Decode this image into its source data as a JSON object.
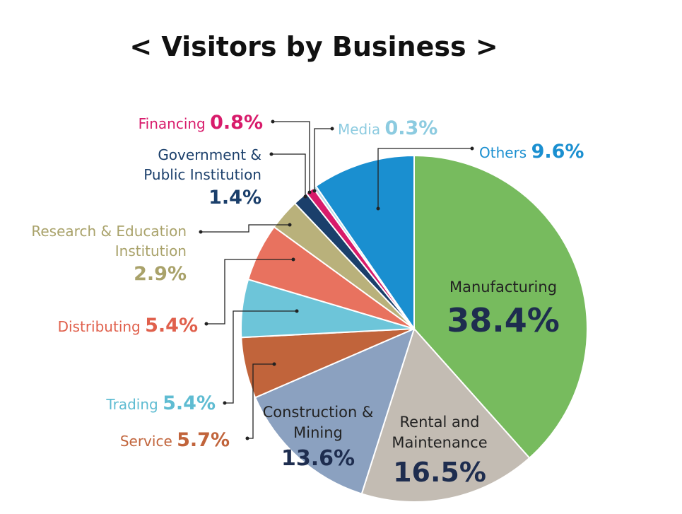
{
  "chart_data": {
    "type": "pie",
    "title": "< Visitors by Business >",
    "categories": [
      "Manufacturing",
      "Rental and Maintenance",
      "Construction & Mining",
      "Service",
      "Trading",
      "Distributing",
      "Research & Education Institution",
      "Government & Public Institution",
      "Financing",
      "Media",
      "Others"
    ],
    "values": [
      38.4,
      16.5,
      13.6,
      5.7,
      5.4,
      5.4,
      2.9,
      1.4,
      0.8,
      0.3,
      9.6
    ],
    "value_labels": [
      "38.4%",
      "16.5%",
      "13.6%",
      "5.7%",
      "5.4%",
      "5.4%",
      "2.9%",
      "1.4%",
      "0.8%",
      "0.3%",
      "9.6%"
    ],
    "colors": [
      "#77bb5e",
      "#c3bcb3",
      "#8ba1c0",
      "#c1643b",
      "#6dc5d9",
      "#e8725f",
      "#b9b17b",
      "#1b3f6b",
      "#d81b6b",
      "#b5dbe9",
      "#1a8fd0"
    ]
  }
}
